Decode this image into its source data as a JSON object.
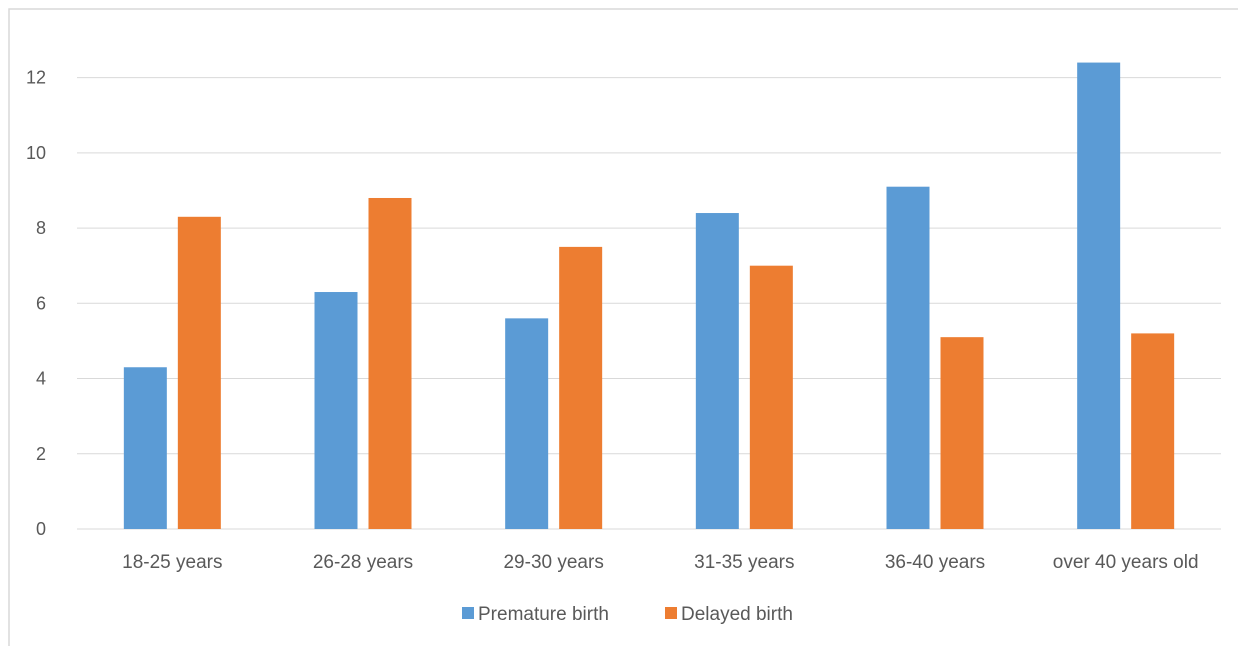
{
  "chart_data": {
    "type": "bar",
    "title": "",
    "xlabel": "",
    "ylabel": "",
    "categories": [
      "18-25 years",
      "26-28 years",
      "29-30 years",
      "31-35 years",
      "36-40 years",
      "over 40 years old"
    ],
    "series": [
      {
        "name": "Premature birth",
        "color": "#5B9BD5",
        "values": [
          4.3,
          6.3,
          5.6,
          8.4,
          9.1,
          12.4
        ]
      },
      {
        "name": "Delayed birth",
        "color": "#ED7D31",
        "values": [
          8.3,
          8.8,
          7.5,
          7.0,
          5.1,
          5.2
        ]
      }
    ],
    "ylim": [
      0,
      13
    ],
    "yticks": [
      "0",
      "2",
      "4",
      "6",
      "8",
      "10",
      "12"
    ],
    "grid": true,
    "legend": "bottom",
    "gridline_color": "#D9D9D9",
    "frame_color": "#D9D9D9"
  }
}
